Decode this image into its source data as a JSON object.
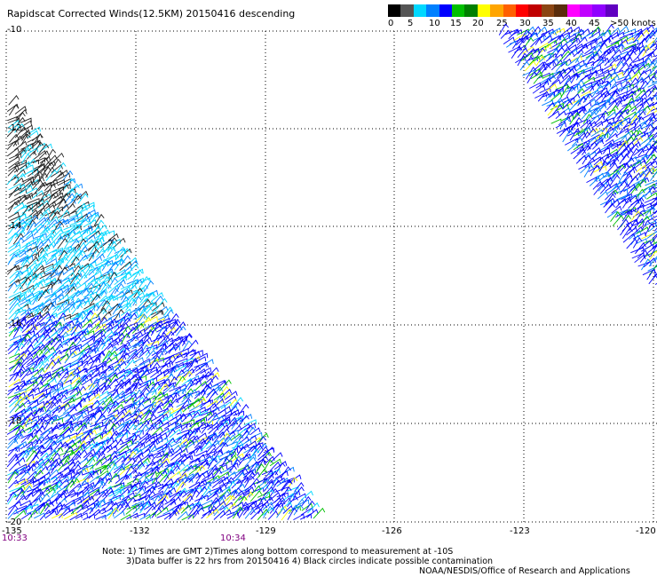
{
  "title": "Rapidscat Corrected Winds(12.5KM) 20150416 descending",
  "legend": {
    "colors": [
      "#000000",
      "#555555",
      "#00d8ff",
      "#0080ff",
      "#0000ff",
      "#00c000",
      "#008000",
      "#ffff00",
      "#ffa500",
      "#ff6000",
      "#ff0000",
      "#c00000",
      "#8b4513",
      "#5a2d0c",
      "#ff00ff",
      "#c000ff",
      "#9000ff",
      "#6000c0"
    ],
    "labels": [
      "0",
      "5",
      "10",
      "15",
      "20",
      "25",
      "30",
      "35",
      "40",
      "45",
      ">50 knots"
    ]
  },
  "axes": {
    "lat_labels": [
      "-10",
      "-12",
      "-14",
      "-16",
      "-18",
      "-20"
    ],
    "lon_labels": [
      "-135",
      "-132",
      "-129",
      "-126",
      "-123",
      "-120"
    ]
  },
  "times": [
    "10:33",
    "10:34"
  ],
  "notes": {
    "line1": "Note: 1) Times are GMT 2)Times along bottom correspond to measurement at -10S",
    "line2": "3)Data buffer is 22 hrs from 20150416 4) Black circles indicate possible contamination"
  },
  "credit": "NOAA/NESDIS/Office of Research and Applications"
}
